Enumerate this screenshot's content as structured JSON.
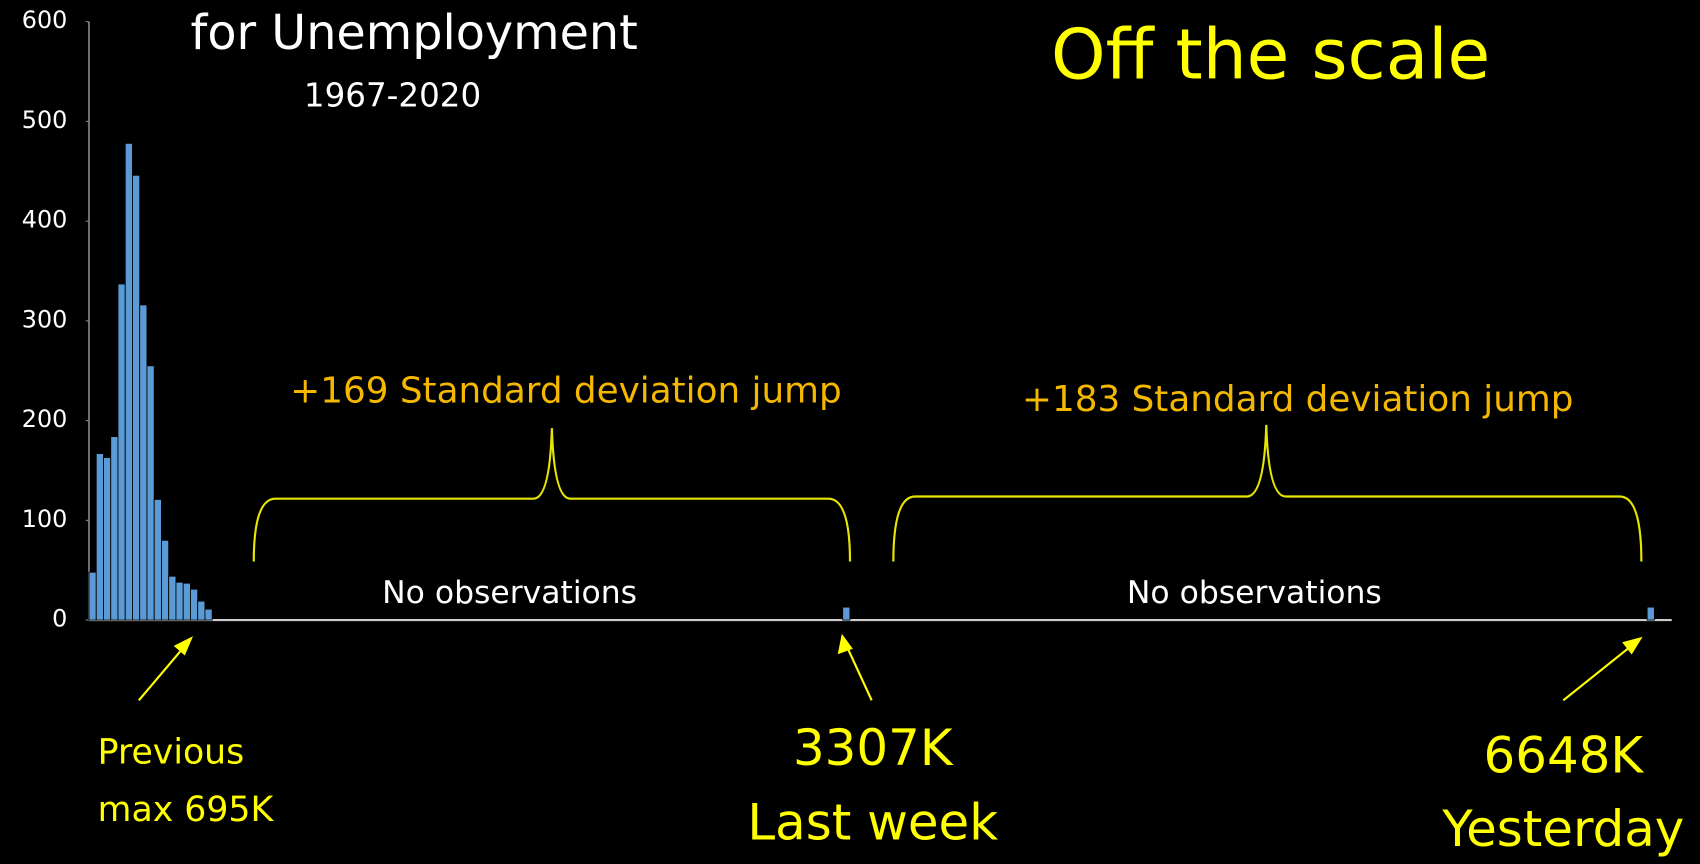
{
  "chart_data": {
    "type": "histogram",
    "title": "for Unemployment",
    "subtitle": "1967-2020",
    "headline": "Off the scale",
    "annotations": [
      "+169 Standard deviation jump",
      "+183 Standard deviation jump",
      "No observations",
      "No observations",
      "Previous",
      "max 695K",
      "3307K",
      "Last week",
      "6648K",
      "Yesterday"
    ],
    "bins": [
      180,
      210,
      240,
      270,
      300,
      330,
      360,
      390,
      420,
      450,
      480,
      510,
      540,
      570,
      600,
      630,
      660,
      690,
      3300,
      3330,
      6630,
      6660
    ],
    "values": [
      48,
      167,
      163,
      184,
      337,
      478,
      446,
      316,
      255,
      121,
      80,
      44,
      38,
      37,
      31,
      19,
      11,
      0,
      13,
      0,
      13
    ],
    "color": "#5b9bd5",
    "xlim": [
      180,
      6660
    ],
    "ylim": [
      0,
      600
    ],
    "yticks": [
      0,
      100,
      200,
      300,
      400,
      500,
      600
    ],
    "grid": false
  }
}
